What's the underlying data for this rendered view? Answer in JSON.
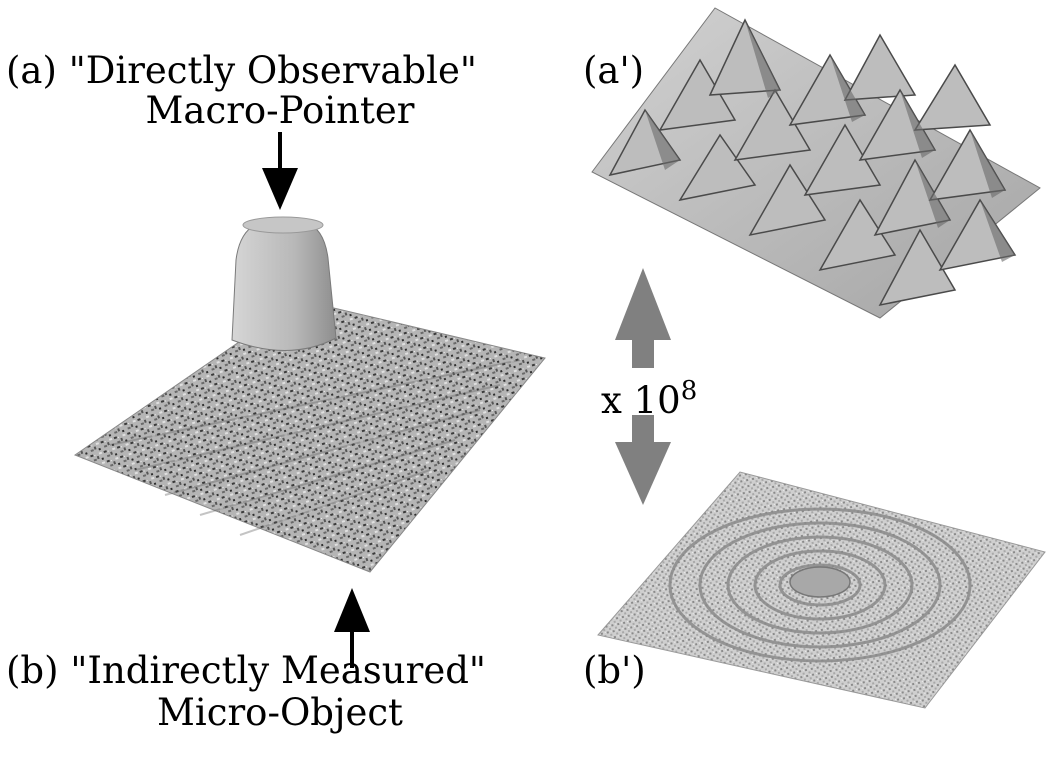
{
  "labels": {
    "a_line1": "(a) \"Directly Observable\"",
    "a_line2": "Macro-Pointer",
    "b_line1": "(b) \"Indirectly Measured\"",
    "b_line2": "Micro-Object",
    "a_prime": "(a')",
    "b_prime": "(b')",
    "scale_prefix": "x 10",
    "scale_exponent": "8"
  },
  "colors": {
    "surface_light": "#c8c8c8",
    "surface_mid": "#9a9a9a",
    "surface_dark": "#4a4a4a",
    "double_arrow": "#808080",
    "arrow": "#000000"
  },
  "icons": {
    "arrow_down": "arrow-down-icon",
    "arrow_up": "arrow-up-icon",
    "double_arrow": "double-arrow-icon"
  }
}
